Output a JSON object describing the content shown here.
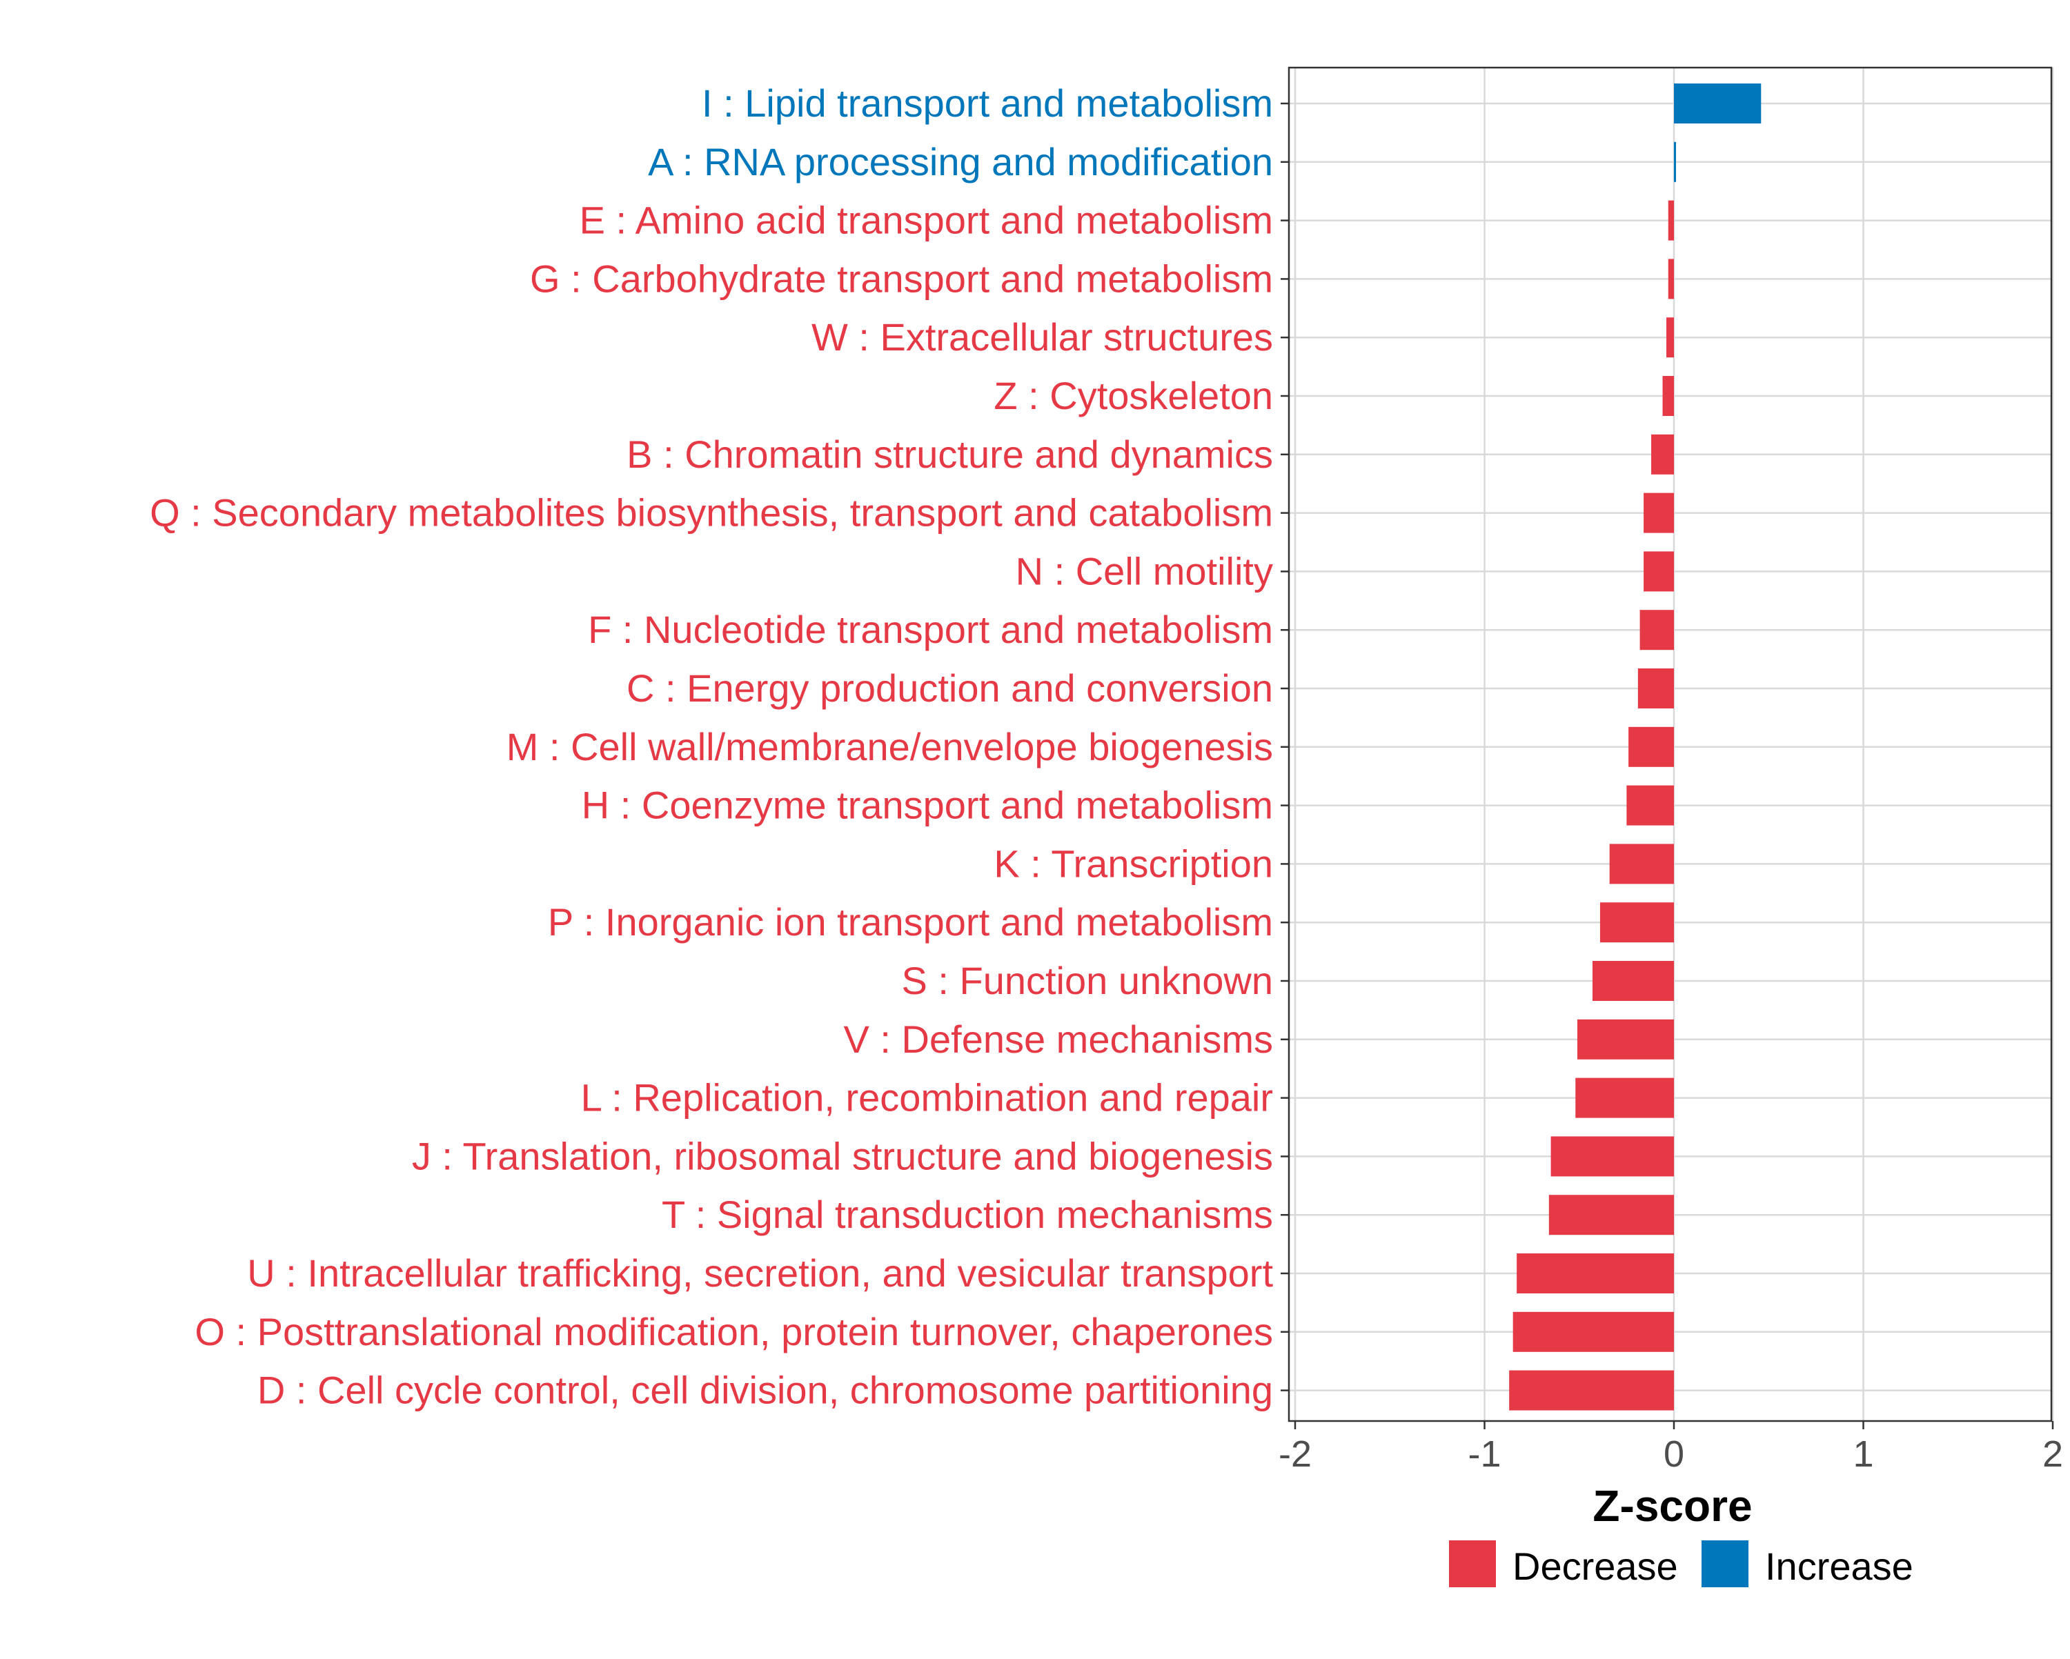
{
  "chart_data": {
    "type": "bar",
    "orientation": "horizontal",
    "title": "",
    "xlabel": "Z-score",
    "ylabel": "",
    "xlim": [
      -2,
      2
    ],
    "xticks": [
      -2,
      -1,
      0,
      1,
      2
    ],
    "xtick_labels": [
      "-2",
      "-1",
      "0",
      "1",
      "2"
    ],
    "grid": true,
    "legend_position": "bottom",
    "legend": [
      {
        "name": "Decrease",
        "color": "#E63946"
      },
      {
        "name": "Increase",
        "color": "#0077BB"
      }
    ],
    "categories": [
      "I : Lipid transport and metabolism",
      "A : RNA processing and modification",
      "E : Amino acid transport and metabolism",
      "G : Carbohydrate transport and metabolism",
      "W : Extracellular structures",
      "Z : Cytoskeleton",
      "B : Chromatin structure and dynamics",
      "Q : Secondary metabolites biosynthesis, transport and catabolism",
      "N : Cell motility",
      "F : Nucleotide transport and metabolism",
      "C : Energy production and conversion",
      "M : Cell wall/membrane/envelope biogenesis",
      "H : Coenzyme transport and metabolism",
      "K : Transcription",
      "P : Inorganic ion transport and metabolism",
      "S : Function unknown",
      "V : Defense mechanisms",
      "L : Replication, recombination and repair",
      "J : Translation, ribosomal structure and biogenesis",
      "T : Signal transduction mechanisms",
      "U : Intracellular trafficking, secretion, and vesicular transport",
      "O : Posttranslational modification, protein turnover, chaperones",
      "D : Cell cycle control, cell division, chromosome partitioning"
    ],
    "values": [
      0.46,
      0.01,
      -0.03,
      -0.03,
      -0.04,
      -0.06,
      -0.12,
      -0.16,
      -0.16,
      -0.18,
      -0.19,
      -0.24,
      -0.25,
      -0.34,
      -0.39,
      -0.43,
      -0.51,
      -0.52,
      -0.65,
      -0.66,
      -0.83,
      -0.85,
      -0.87
    ],
    "groups": [
      "Increase",
      "Increase",
      "Decrease",
      "Decrease",
      "Decrease",
      "Decrease",
      "Decrease",
      "Decrease",
      "Decrease",
      "Decrease",
      "Decrease",
      "Decrease",
      "Decrease",
      "Decrease",
      "Decrease",
      "Decrease",
      "Decrease",
      "Decrease",
      "Decrease",
      "Decrease",
      "Decrease",
      "Decrease",
      "Decrease"
    ]
  },
  "colors": {
    "decrease": "#E63946",
    "increase": "#0077BB",
    "grid": "#D9D9D9",
    "axis_text": "#4D4D4D"
  }
}
